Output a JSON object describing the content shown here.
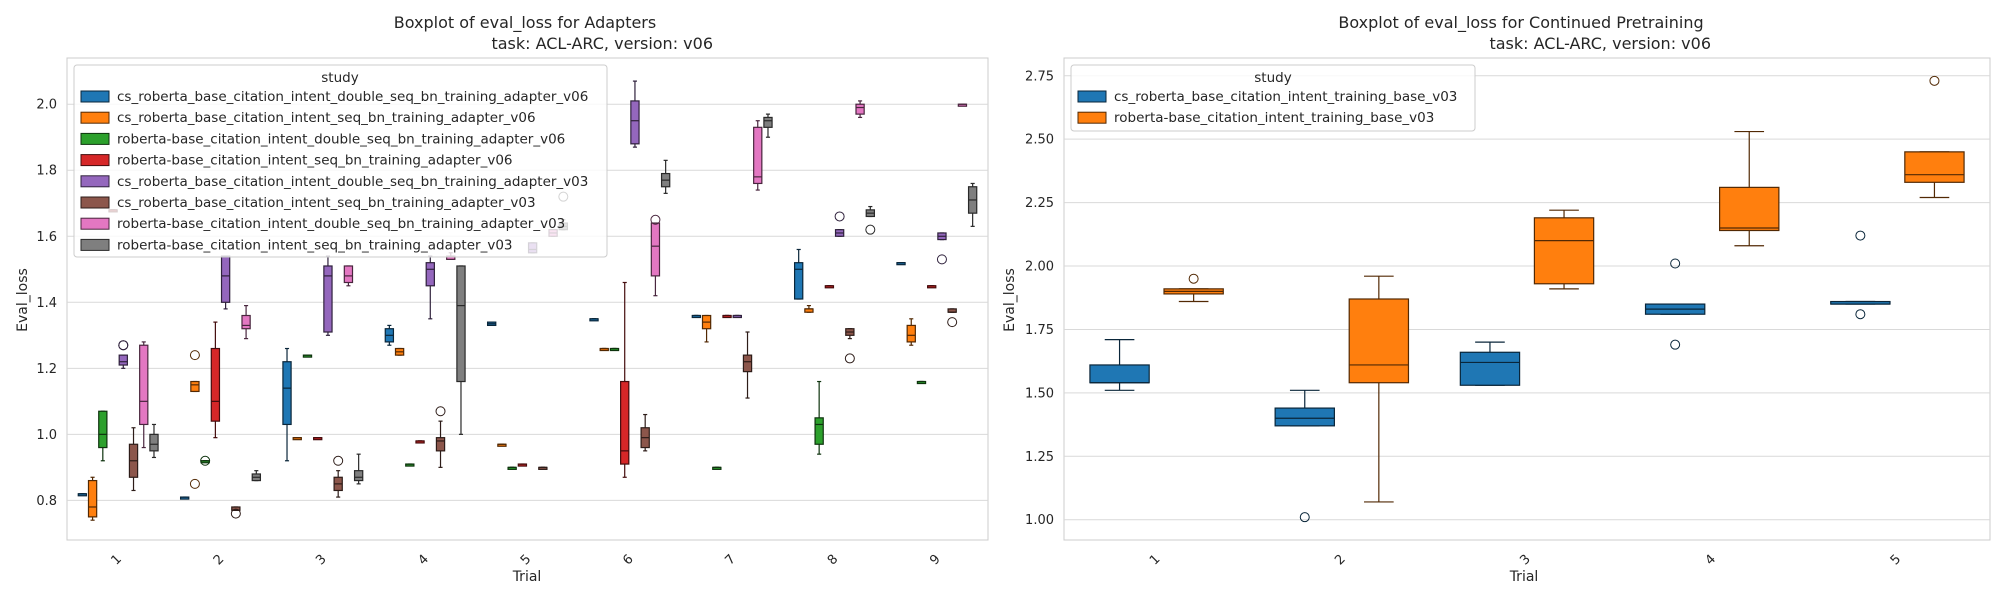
{
  "chart_data": [
    {
      "type": "box",
      "title_line1": "Boxplot of eval_loss for Adapters",
      "title_line2": "task: ACL-ARC, version: v06",
      "xlabel": "Trial",
      "ylabel": "Eval_loss",
      "categories": [
        "1",
        "2",
        "3",
        "4",
        "5",
        "6",
        "7",
        "8",
        "9"
      ],
      "ylim": [
        0.68,
        2.14
      ],
      "yticks": [
        0.8,
        1.0,
        1.2,
        1.4,
        1.6,
        1.8,
        2.0
      ],
      "legend_title": "study",
      "legend_position": "upper-left",
      "series": [
        {
          "name": "cs_roberta_base_citation_intent_double_seq_bn_training_adapter_v06",
          "color": "#1f77b4",
          "boxes": [
            [
              0.82,
              0.82,
              0.82,
              0.82,
              0.82,
              []
            ],
            [
              0.81,
              0.81,
              0.81,
              0.81,
              0.81,
              []
            ],
            [
              0.92,
              1.03,
              1.14,
              1.22,
              1.26,
              []
            ],
            [
              1.27,
              1.28,
              1.3,
              1.32,
              1.33,
              []
            ],
            [
              1.33,
              1.33,
              1.335,
              1.34,
              1.34,
              []
            ],
            [
              1.35,
              1.35,
              1.35,
              1.35,
              1.35,
              []
            ],
            [
              1.36,
              1.36,
              1.36,
              1.36,
              1.36,
              []
            ],
            [
              1.41,
              1.41,
              1.5,
              1.52,
              1.56,
              []
            ],
            [
              1.52,
              1.52,
              1.52,
              1.52,
              1.52,
              []
            ]
          ]
        },
        {
          "name": "cs_roberta_base_citation_intent_seq_bn_training_adapter_v06",
          "color": "#ff7f0e",
          "boxes": [
            [
              0.74,
              0.75,
              0.78,
              0.86,
              0.87,
              []
            ],
            [
              1.13,
              1.13,
              1.15,
              1.16,
              1.16,
              [
                1.24,
                0.85
              ]
            ],
            [
              0.99,
              0.99,
              0.99,
              0.99,
              0.99,
              []
            ],
            [
              1.24,
              1.24,
              1.25,
              1.26,
              1.26,
              []
            ],
            [
              0.97,
              0.97,
              0.97,
              0.97,
              0.97,
              []
            ],
            [
              1.26,
              1.26,
              1.26,
              1.26,
              1.26,
              []
            ],
            [
              1.28,
              1.32,
              1.34,
              1.36,
              1.36,
              []
            ],
            [
              1.37,
              1.37,
              1.38,
              1.38,
              1.39,
              []
            ],
            [
              1.27,
              1.28,
              1.3,
              1.33,
              1.35,
              []
            ]
          ]
        },
        {
          "name": "roberta-base_citation_intent_double_seq_bn_training_adapter_v06",
          "color": "#2ca02c",
          "boxes": [
            [
              0.92,
              0.96,
              1.0,
              1.07,
              1.07,
              []
            ],
            [
              0.92,
              0.92,
              0.92,
              0.92,
              0.92,
              [
                0.92
              ]
            ],
            [
              1.24,
              1.24,
              1.24,
              1.24,
              1.24,
              []
            ],
            [
              0.91,
              0.91,
              0.91,
              0.91,
              0.91,
              []
            ],
            [
              0.9,
              0.9,
              0.9,
              0.9,
              0.9,
              []
            ],
            [
              1.26,
              1.26,
              1.26,
              1.26,
              1.26,
              []
            ],
            [
              0.9,
              0.9,
              0.9,
              0.9,
              0.9,
              []
            ],
            [
              0.94,
              0.97,
              1.03,
              1.05,
              1.16,
              []
            ],
            [
              1.16,
              1.16,
              1.16,
              1.16,
              1.16,
              []
            ]
          ]
        },
        {
          "name": "roberta-base_citation_intent_seq_bn_training_adapter_v06",
          "color": "#d62728",
          "boxes": [
            [
              1.68,
              1.68,
              1.68,
              1.68,
              1.68,
              []
            ],
            [
              0.99,
              1.04,
              1.1,
              1.26,
              1.34,
              []
            ],
            [
              0.99,
              0.99,
              0.99,
              0.99,
              0.99,
              []
            ],
            [
              0.98,
              0.98,
              0.98,
              0.98,
              0.98,
              []
            ],
            [
              0.91,
              0.91,
              0.91,
              0.91,
              0.91,
              []
            ],
            [
              0.87,
              0.91,
              0.95,
              1.16,
              1.46,
              []
            ],
            [
              1.36,
              1.36,
              1.36,
              1.36,
              1.36,
              []
            ],
            [
              1.45,
              1.45,
              1.45,
              1.45,
              1.45,
              []
            ],
            [
              1.45,
              1.45,
              1.45,
              1.45,
              1.45,
              []
            ]
          ]
        },
        {
          "name": "cs_roberta_base_citation_intent_double_seq_bn_training_adapter_v03",
          "color": "#9467bd",
          "boxes": [
            [
              1.2,
              1.21,
              1.22,
              1.24,
              1.24,
              [
                1.27,
                1.27
              ]
            ],
            [
              1.38,
              1.4,
              1.48,
              1.54,
              1.54,
              []
            ],
            [
              1.3,
              1.31,
              1.48,
              1.51,
              1.54,
              []
            ],
            [
              1.35,
              1.45,
              1.5,
              1.52,
              1.54,
              []
            ],
            [
              1.55,
              1.55,
              1.56,
              1.58,
              1.58,
              []
            ],
            [
              1.87,
              1.88,
              1.95,
              2.01,
              2.07,
              []
            ],
            [
              1.36,
              1.36,
              1.36,
              1.36,
              1.36,
              []
            ],
            [
              1.6,
              1.6,
              1.61,
              1.62,
              1.62,
              [
                1.66
              ]
            ],
            [
              1.59,
              1.59,
              1.6,
              1.61,
              1.61,
              [
                1.53
              ]
            ]
          ]
        },
        {
          "name": "cs_roberta_base_citation_intent_seq_bn_training_adapter_v03",
          "color": "#8c564b",
          "boxes": [
            [
              0.83,
              0.87,
              0.92,
              0.97,
              1.02,
              []
            ],
            [
              0.77,
              0.77,
              0.77,
              0.78,
              0.78,
              [
                0.76
              ]
            ],
            [
              0.81,
              0.83,
              0.85,
              0.87,
              0.89,
              [
                0.92
              ]
            ],
            [
              0.9,
              0.95,
              0.98,
              0.99,
              1.04,
              [
                1.07
              ]
            ],
            [
              0.9,
              0.9,
              0.9,
              0.9,
              0.9,
              []
            ],
            [
              0.95,
              0.96,
              0.99,
              1.02,
              1.06,
              []
            ],
            [
              1.11,
              1.19,
              1.22,
              1.24,
              1.31,
              []
            ],
            [
              1.29,
              1.3,
              1.31,
              1.32,
              1.32,
              [
                1.23
              ]
            ],
            [
              1.37,
              1.37,
              1.37,
              1.38,
              1.38,
              [
                1.34
              ]
            ]
          ]
        },
        {
          "name": "roberta-base_citation_intent_double_seq_bn_training_adapter_v03",
          "color": "#e377c2",
          "boxes": [
            [
              0.96,
              1.03,
              1.1,
              1.27,
              1.28,
              []
            ],
            [
              1.29,
              1.32,
              1.33,
              1.36,
              1.39,
              []
            ],
            [
              1.45,
              1.46,
              1.48,
              1.51,
              1.51,
              []
            ],
            [
              1.53,
              1.53,
              1.54,
              1.54,
              1.55,
              []
            ],
            [
              1.6,
              1.6,
              1.61,
              1.62,
              1.62,
              []
            ],
            [
              1.42,
              1.48,
              1.57,
              1.64,
              1.64,
              [
                1.65
              ]
            ],
            [
              1.74,
              1.76,
              1.78,
              1.93,
              1.95,
              []
            ],
            [
              1.96,
              1.97,
              1.99,
              2.0,
              2.01,
              []
            ],
            [
              2.0,
              2.0,
              2.0,
              2.0,
              2.0,
              []
            ]
          ]
        },
        {
          "name": "roberta-base_citation_intent_seq_bn_training_adapter_v03",
          "color": "#7f7f7f",
          "boxes": [
            [
              0.93,
              0.95,
              0.97,
              1.0,
              1.03,
              []
            ],
            [
              0.86,
              0.86,
              0.87,
              0.88,
              0.89,
              []
            ],
            [
              0.85,
              0.86,
              0.87,
              0.89,
              0.94,
              []
            ],
            [
              1.0,
              1.16,
              1.39,
              1.51,
              1.51,
              []
            ],
            [
              1.62,
              1.62,
              1.63,
              1.64,
              1.65,
              [
                1.72
              ]
            ],
            [
              1.73,
              1.75,
              1.77,
              1.79,
              1.83,
              []
            ],
            [
              1.9,
              1.93,
              1.95,
              1.96,
              1.97,
              []
            ],
            [
              1.66,
              1.66,
              1.67,
              1.68,
              1.69,
              [
                1.62
              ]
            ],
            [
              1.63,
              1.67,
              1.71,
              1.75,
              1.76,
              []
            ]
          ]
        }
      ]
    },
    {
      "type": "box",
      "title_line1": "Boxplot of eval_loss for Continued Pretraining",
      "title_line2": "task: ACL-ARC, version: v06",
      "xlabel": "Trial",
      "ylabel": "Eval_loss",
      "categories": [
        "1",
        "2",
        "3",
        "4",
        "5"
      ],
      "ylim": [
        0.92,
        2.82
      ],
      "yticks": [
        1.0,
        1.25,
        1.5,
        1.75,
        2.0,
        2.25,
        2.5,
        2.75
      ],
      "ytick_labels": [
        "1.00",
        "1.25",
        "1.50",
        "1.75",
        "2.00",
        "2.25",
        "2.50",
        "2.75"
      ],
      "legend_title": "study",
      "legend_position": "upper-left",
      "series": [
        {
          "name": "cs_roberta_base_citation_intent_training_base_v03",
          "color": "#1f77b4",
          "boxes": [
            [
              1.51,
              1.54,
              1.54,
              1.61,
              1.71,
              []
            ],
            [
              1.37,
              1.37,
              1.4,
              1.44,
              1.51,
              [
                1.01
              ]
            ],
            [
              1.53,
              1.53,
              1.62,
              1.66,
              1.7,
              []
            ],
            [
              1.81,
              1.81,
              1.83,
              1.85,
              1.85,
              [
                2.01,
                1.69
              ]
            ],
            [
              1.85,
              1.85,
              1.85,
              1.86,
              1.86,
              [
                2.12,
                1.81
              ]
            ]
          ]
        },
        {
          "name": "roberta-base_citation_intent_training_base_v03",
          "color": "#ff7f0e",
          "boxes": [
            [
              1.86,
              1.89,
              1.9,
              1.91,
              1.91,
              [
                1.95
              ]
            ],
            [
              1.07,
              1.54,
              1.61,
              1.87,
              1.96,
              []
            ],
            [
              1.91,
              1.93,
              2.1,
              2.19,
              2.22,
              []
            ],
            [
              2.08,
              2.14,
              2.15,
              2.31,
              2.53,
              []
            ],
            [
              2.27,
              2.33,
              2.36,
              2.45,
              2.45,
              [
                2.73
              ]
            ]
          ]
        }
      ]
    }
  ]
}
